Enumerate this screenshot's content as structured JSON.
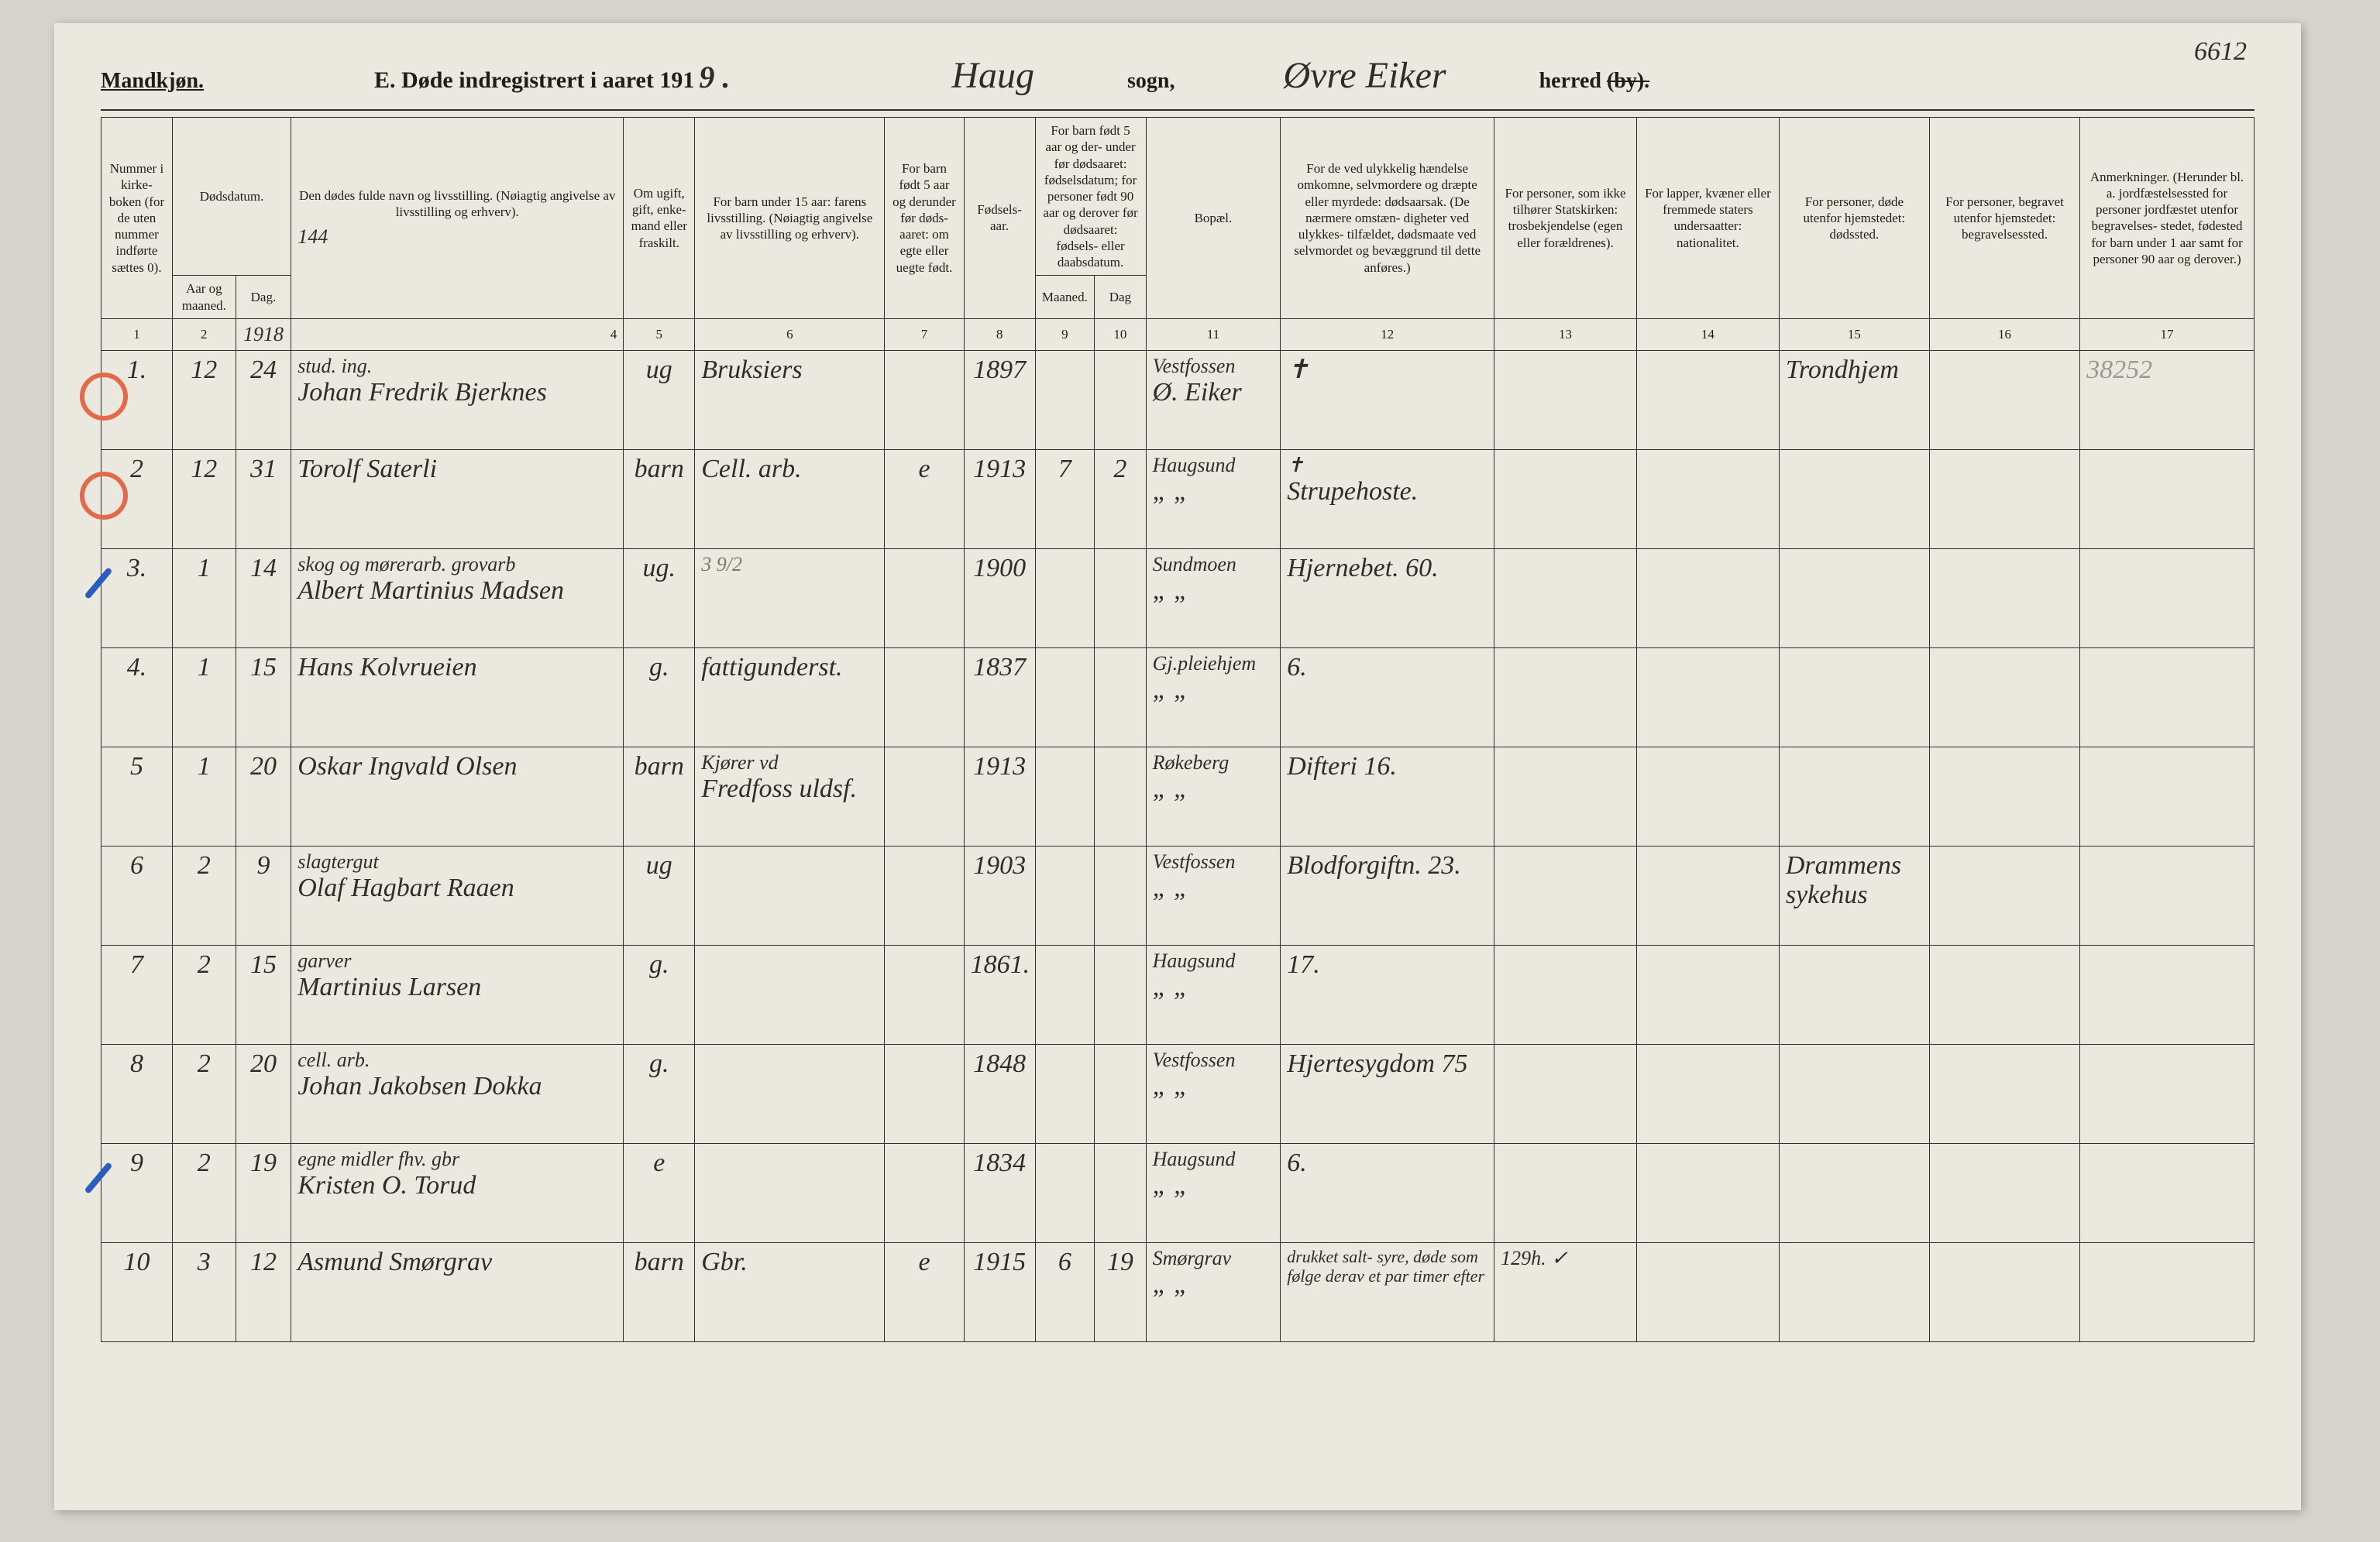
{
  "corner_page_number": "6612",
  "header": {
    "gender": "Mandkjøn.",
    "title_prefix": "E.   Døde indregistrert i aaret 191",
    "year_suffix_hand": "9 .",
    "parish_hand": "Haug",
    "sogn_label": "sogn,",
    "district_hand": "Øvre Eiker",
    "herred_label": "herred",
    "by_struck": "(by)."
  },
  "columns": {
    "c1": "Nummer i kirke- boken (for de uten nummer indførte sættes 0).",
    "c2_group": "Dødsdatum.",
    "c2a": "Aar og maaned.",
    "c2b": "Dag.",
    "c3": "Den dødes fulde navn og livsstilling. (Nøiagtig angivelse av livsstilling og erhverv).",
    "c3_hand_below": "144",
    "c4": "Om ugift, gift, enke- mand eller fraskilt.",
    "c5": "For barn under 15 aar: farens livsstilling. (Nøiagtig angivelse av livsstilling og erhverv).",
    "c6": "For barn født 5 aar og derunder før døds- aaret: om egte eller uegte født.",
    "c7": "Fødsels- aar.",
    "c8_group": "For barn født 5 aar og der- under før dødsaaret: fødselsdatum; for personer født 90 aar og derover før dødsaaret: fødsels- eller daabsdatum.",
    "c8a": "Maaned.",
    "c8b": "Dag",
    "c9": "Bopæl.",
    "c10": "For de ved ulykkelig hændelse omkomne, selvmordere og dræpte eller myrdede: dødsaarsak. (De nærmere omstæn- digheter ved ulykkes- tilfældet, dødsmaate ved selvmordet og bevæggrund til dette anføres.)",
    "c11": "For personer, som ikke tilhører Statskirken: trosbekjendelse (egen eller forældrenes).",
    "c12": "For lapper, kvæner eller fremmede staters undersaatter: nationalitet.",
    "c13": "For personer, døde utenfor hjemstedet: dødssted.",
    "c14": "For personer, begravet utenfor hjemstedet: begravelsessted.",
    "c15": "Anmerkninger. (Herunder bl. a. jordfæstelsessted for personer jordfæstet utenfor begravelses- stedet, fødested for barn under 1 aar samt for personer 90 aar og derover.)"
  },
  "colnums": [
    "1",
    "2",
    "3",
    "4",
    "5",
    "6",
    "7",
    "8",
    "9",
    "10",
    "11",
    "12",
    "13",
    "14",
    "15",
    "16",
    "17"
  ],
  "colnums_year_hand": "1918",
  "rows": [
    {
      "mark": "red-circle",
      "num": "1.",
      "month": "12",
      "day": "24",
      "name_top": "stud. ing.",
      "name": "Johan Fredrik Bjerknes",
      "civil": "ug",
      "father": "Bruksiers",
      "legit": "",
      "birthyear": "1897",
      "fm": "",
      "fd": "",
      "residence_top": "Vestfossen",
      "residence": "Ø. Eiker",
      "cause": "✝",
      "c13": "",
      "c14": "",
      "deathplace": "Trondhjem",
      "burialplace": "",
      "remarks": "38252",
      "remarks_class": "faded-pencil"
    },
    {
      "mark": "red-circle",
      "num": "2",
      "month": "12",
      "day": "31",
      "name_top": "",
      "name": "Torolf Saterli",
      "civil": "barn",
      "father": "Cell. arb.",
      "legit": "e",
      "birthyear": "1913",
      "fm": "7",
      "fd": "2",
      "residence_top": "Haugsund",
      "residence": "„  „",
      "cause_top": "✝",
      "cause": "Strupehoste.",
      "c13": "",
      "c14": "",
      "deathplace": "",
      "burialplace": "",
      "remarks": ""
    },
    {
      "mark": "blue-slash",
      "num": "3.",
      "month": "1",
      "day": "14",
      "name_top": "skog og mørerarb.   grovarb",
      "name": "Albert Martinius Madsen",
      "civil": "ug.",
      "father_top": "3 9/2",
      "father_top_class": "hand-faint",
      "father": "",
      "legit": "",
      "birthyear": "1900",
      "fm": "",
      "fd": "",
      "residence_top": "Sundmoen",
      "residence": "„  „",
      "cause": "Hjernebet. 60.",
      "c13": "",
      "c14": "",
      "deathplace": "",
      "burialplace": "",
      "remarks": ""
    },
    {
      "mark": "",
      "num": "4.",
      "month": "1",
      "day": "15",
      "name_top": "",
      "name": "Hans Kolvrueien",
      "civil": "g.",
      "father": "fattigunderst.",
      "legit": "",
      "birthyear": "1837",
      "fm": "",
      "fd": "",
      "residence_top": "Gj.pleiehjem",
      "residence": "„  „",
      "cause": "6.",
      "c13": "",
      "c14": "",
      "deathplace": "",
      "burialplace": "",
      "remarks": ""
    },
    {
      "mark": "",
      "num": "5",
      "month": "1",
      "day": "20",
      "name_top": "",
      "name": "Oskar Ingvald Olsen",
      "civil": "barn",
      "father_top": "Kjører vd",
      "father": "Fredfoss uldsf.",
      "legit": "",
      "birthyear": "1913",
      "fm": "",
      "fd": "",
      "residence_top": "Røkeberg",
      "residence": "„  „",
      "cause": "Difteri 16.",
      "c13": "",
      "c14": "",
      "deathplace": "",
      "burialplace": "",
      "remarks": ""
    },
    {
      "mark": "",
      "num": "6",
      "month": "2",
      "day": "9",
      "name_top": "slagtergut",
      "name": "Olaf Hagbart Raaen",
      "civil": "ug",
      "father": "",
      "legit": "",
      "birthyear": "1903",
      "fm": "",
      "fd": "",
      "residence_top": "Vestfossen",
      "residence": "„  „",
      "cause": "Blodforgiftn. 23.",
      "c13": "",
      "c14": "",
      "deathplace": "Drammens sykehus",
      "burialplace": "",
      "remarks": ""
    },
    {
      "mark": "",
      "num": "7",
      "month": "2",
      "day": "15",
      "name_top": "garver",
      "name": "Martinius Larsen",
      "civil": "g.",
      "father": "",
      "legit": "",
      "birthyear": "1861.",
      "fm": "",
      "fd": "",
      "residence_top": "Haugsund",
      "residence": "„  „",
      "cause": "17.",
      "c13": "",
      "c14": "",
      "deathplace": "",
      "burialplace": "",
      "remarks": ""
    },
    {
      "mark": "",
      "num": "8",
      "month": "2",
      "day": "20",
      "name_top": "cell. arb.",
      "name": "Johan Jakobsen Dokka",
      "civil": "g.",
      "father": "",
      "legit": "",
      "birthyear": "1848",
      "fm": "",
      "fd": "",
      "residence_top": "Vestfossen",
      "residence": "„  „",
      "cause": "Hjertesygdom 75",
      "c13": "",
      "c14": "",
      "deathplace": "",
      "burialplace": "",
      "remarks": ""
    },
    {
      "mark": "blue-slash",
      "num": "9",
      "month": "2",
      "day": "19",
      "name_top": "egne midler   fhv. gbr",
      "name": "Kristen O. Torud",
      "civil": "e",
      "father": "",
      "legit": "",
      "birthyear": "1834",
      "fm": "",
      "fd": "",
      "residence_top": "Haugsund",
      "residence": "„  „",
      "cause": "6.",
      "c13": "",
      "c14": "",
      "deathplace": "",
      "burialplace": "",
      "remarks": ""
    },
    {
      "mark": "",
      "num": "10",
      "month": "3",
      "day": "12",
      "name_top": "",
      "name": "Asmund Smørgrav",
      "civil": "barn",
      "father": "Gbr.",
      "legit": "e",
      "birthyear": "1915",
      "fm": "6",
      "fd": "19",
      "residence_top": "Smørgrav",
      "residence": "„  „",
      "cause": "drukket salt- syre, døde som følge derav et par timer efter",
      "cause_class": "tiny-note",
      "c13": "129h.  ✓",
      "c14": "",
      "deathplace": "",
      "burialplace": "",
      "remarks": ""
    }
  ]
}
